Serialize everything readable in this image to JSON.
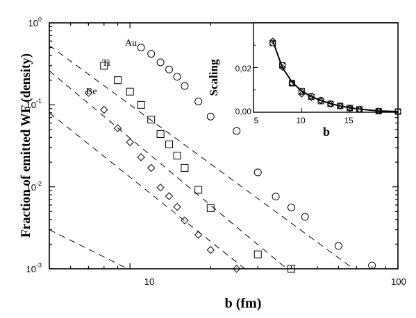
{
  "chart_data": [
    {
      "type": "scatter",
      "x_scale": "log",
      "y_scale": "log",
      "xlabel": "b (fm)",
      "ylabel": "Fraction of emitted WF (density)",
      "xlim": [
        5,
        100
      ],
      "ylim": [
        0.001,
        1
      ],
      "x_ticks": [
        "10",
        "100"
      ],
      "y_ticks": [
        {
          "mantissa": "10",
          "exponent": "-3"
        },
        {
          "mantissa": "10",
          "exponent": "-2"
        },
        {
          "mantissa": "10",
          "exponent": "-1"
        },
        {
          "mantissa": "10",
          "exponent": "0"
        }
      ],
      "series": [
        {
          "name": "Au",
          "marker": "circle",
          "points": [
            [
              11,
              0.5
            ],
            [
              12,
              0.42
            ],
            [
              13,
              0.33
            ],
            [
              14,
              0.27
            ],
            [
              15,
              0.22
            ],
            [
              16,
              0.17
            ],
            [
              18,
              0.11
            ],
            [
              20,
              0.072
            ],
            [
              25,
              0.048
            ],
            [
              30,
              0.015
            ],
            [
              35,
              0.0076
            ],
            [
              40,
              0.0056
            ],
            [
              45,
              0.0043
            ],
            [
              60,
              0.0019
            ],
            [
              80,
              0.0011
            ]
          ]
        },
        {
          "name": "Ti",
          "marker": "square",
          "points": [
            [
              8,
              0.3
            ],
            [
              9,
              0.2
            ],
            [
              10,
              0.145
            ],
            [
              11,
              0.1
            ],
            [
              12,
              0.066
            ],
            [
              13,
              0.044
            ],
            [
              14,
              0.033
            ],
            [
              15,
              0.024
            ],
            [
              16,
              0.017
            ],
            [
              18,
              0.0092
            ],
            [
              20,
              0.0055
            ],
            [
              30,
              0.0015
            ],
            [
              40,
              0.001
            ]
          ]
        },
        {
          "name": "Be",
          "marker": "diamond",
          "points": [
            [
              7,
              0.14
            ],
            [
              8,
              0.087
            ],
            [
              9,
              0.052
            ],
            [
              10,
              0.035
            ],
            [
              11,
              0.023
            ],
            [
              12,
              0.017
            ],
            [
              13,
              0.0098
            ],
            [
              14,
              0.0077
            ],
            [
              15,
              0.0057
            ],
            [
              16,
              0.0039
            ],
            [
              18,
              0.0026
            ],
            [
              20,
              0.0017
            ],
            [
              25,
              0.001
            ]
          ]
        }
      ],
      "fit_lines": [
        {
          "style": "dashed",
          "points": [
            [
              5,
              0.53
            ],
            [
              100,
              0.0004
            ]
          ]
        },
        {
          "style": "dashed",
          "points": [
            [
              5,
              0.26
            ],
            [
              40,
              0.0009
            ]
          ]
        },
        {
          "style": "dashed",
          "points": [
            [
              5,
              0.08
            ],
            [
              35,
              0.0005
            ]
          ]
        },
        {
          "style": "dashed",
          "points": [
            [
              5,
              0.003
            ],
            [
              15,
              0.0005
            ]
          ]
        }
      ],
      "labels": {
        "au": "Au",
        "ti": "Ti",
        "be": "Be"
      }
    },
    {
      "type": "scatter",
      "position": "top-right inset",
      "xlabel": "b",
      "ylabel": "Scaling",
      "xlim": [
        5,
        20
      ],
      "ylim": [
        0,
        0.04
      ],
      "x_ticks": [
        "5",
        "10",
        "15"
      ],
      "y_ticks": [
        "0,00",
        "0,02"
      ],
      "series": [
        {
          "marker": "circle",
          "points": [
            [
              7,
              0.031
            ],
            [
              8,
              0.021
            ],
            [
              9,
              0.013
            ],
            [
              10,
              0.009
            ],
            [
              11,
              0.0073
            ],
            [
              12,
              0.0055
            ],
            [
              13,
              0.0039
            ],
            [
              14,
              0.0029
            ],
            [
              15,
              0.0018
            ],
            [
              16,
              0.0012
            ],
            [
              18,
              0.0005
            ],
            [
              20,
              0.0003
            ]
          ]
        },
        {
          "marker": "square",
          "points": [
            [
              7,
              0.031
            ],
            [
              8,
              0.021
            ],
            [
              9,
              0.013
            ],
            [
              10,
              0.0095
            ],
            [
              11,
              0.0069
            ],
            [
              12,
              0.005
            ],
            [
              13,
              0.0037
            ],
            [
              14,
              0.0028
            ],
            [
              15,
              0.0019
            ],
            [
              16,
              0.0013
            ],
            [
              18,
              0.0005
            ],
            [
              20,
              0.0003
            ]
          ]
        },
        {
          "marker": "diamond",
          "points": [
            [
              7,
              0.032
            ],
            [
              8,
              0.02
            ],
            [
              9,
              0.013
            ],
            [
              10,
              0.008
            ],
            [
              11,
              0.0065
            ],
            [
              12,
              0.005
            ],
            [
              13,
              0.0036
            ],
            [
              14,
              0.0028
            ],
            [
              15,
              0.0017
            ],
            [
              16,
              0.0012
            ],
            [
              18,
              0.0005
            ]
          ]
        }
      ],
      "fit_line": {
        "style": "solid",
        "points": [
          [
            7,
            0.032
          ],
          [
            8,
            0.02
          ],
          [
            9,
            0.0135
          ],
          [
            10,
            0.0095
          ],
          [
            11,
            0.007
          ],
          [
            12,
            0.0052
          ],
          [
            13,
            0.0038
          ],
          [
            14,
            0.0028
          ],
          [
            15,
            0.002
          ],
          [
            16,
            0.0014
          ],
          [
            18,
            0.0006
          ],
          [
            20,
            0.0003
          ]
        ]
      }
    }
  ]
}
